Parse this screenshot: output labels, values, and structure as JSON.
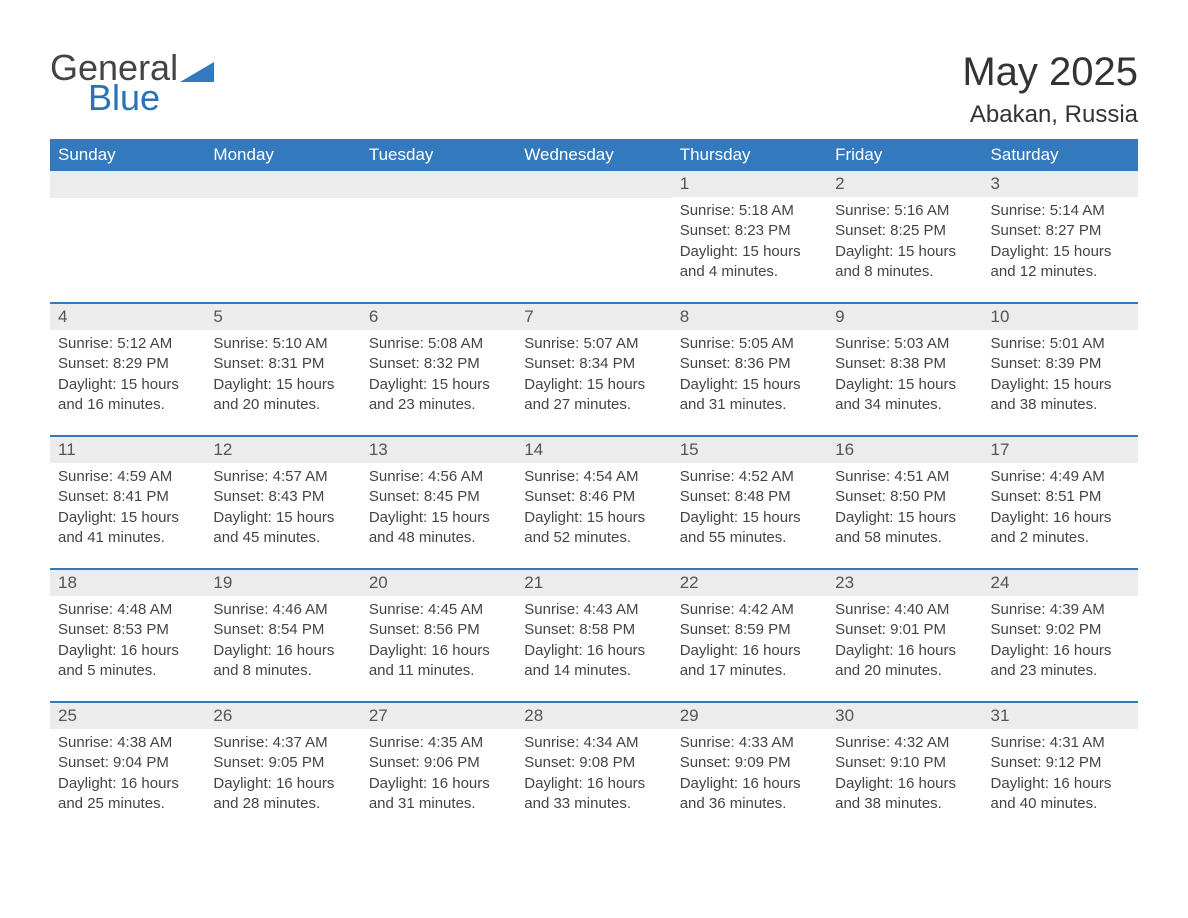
{
  "logo": {
    "general": "General",
    "blue": "Blue"
  },
  "title": "May 2025",
  "location": "Abakan, Russia",
  "colors": {
    "header_bg": "#3279bd",
    "header_text": "#ffffff",
    "daynum_bg": "#ececec",
    "daynum_border": "#3279bd",
    "text": "#444444",
    "logo_blue": "#2873b8",
    "logo_gray": "#444444",
    "page_bg": "#ffffff"
  },
  "weekdays": [
    "Sunday",
    "Monday",
    "Tuesday",
    "Wednesday",
    "Thursday",
    "Friday",
    "Saturday"
  ],
  "weeks": [
    [
      null,
      null,
      null,
      null,
      {
        "d": "1",
        "sr": "5:18 AM",
        "ss": "8:23 PM",
        "dl": "15 hours and 4 minutes."
      },
      {
        "d": "2",
        "sr": "5:16 AM",
        "ss": "8:25 PM",
        "dl": "15 hours and 8 minutes."
      },
      {
        "d": "3",
        "sr": "5:14 AM",
        "ss": "8:27 PM",
        "dl": "15 hours and 12 minutes."
      }
    ],
    [
      {
        "d": "4",
        "sr": "5:12 AM",
        "ss": "8:29 PM",
        "dl": "15 hours and 16 minutes."
      },
      {
        "d": "5",
        "sr": "5:10 AM",
        "ss": "8:31 PM",
        "dl": "15 hours and 20 minutes."
      },
      {
        "d": "6",
        "sr": "5:08 AM",
        "ss": "8:32 PM",
        "dl": "15 hours and 23 minutes."
      },
      {
        "d": "7",
        "sr": "5:07 AM",
        "ss": "8:34 PM",
        "dl": "15 hours and 27 minutes."
      },
      {
        "d": "8",
        "sr": "5:05 AM",
        "ss": "8:36 PM",
        "dl": "15 hours and 31 minutes."
      },
      {
        "d": "9",
        "sr": "5:03 AM",
        "ss": "8:38 PM",
        "dl": "15 hours and 34 minutes."
      },
      {
        "d": "10",
        "sr": "5:01 AM",
        "ss": "8:39 PM",
        "dl": "15 hours and 38 minutes."
      }
    ],
    [
      {
        "d": "11",
        "sr": "4:59 AM",
        "ss": "8:41 PM",
        "dl": "15 hours and 41 minutes."
      },
      {
        "d": "12",
        "sr": "4:57 AM",
        "ss": "8:43 PM",
        "dl": "15 hours and 45 minutes."
      },
      {
        "d": "13",
        "sr": "4:56 AM",
        "ss": "8:45 PM",
        "dl": "15 hours and 48 minutes."
      },
      {
        "d": "14",
        "sr": "4:54 AM",
        "ss": "8:46 PM",
        "dl": "15 hours and 52 minutes."
      },
      {
        "d": "15",
        "sr": "4:52 AM",
        "ss": "8:48 PM",
        "dl": "15 hours and 55 minutes."
      },
      {
        "d": "16",
        "sr": "4:51 AM",
        "ss": "8:50 PM",
        "dl": "15 hours and 58 minutes."
      },
      {
        "d": "17",
        "sr": "4:49 AM",
        "ss": "8:51 PM",
        "dl": "16 hours and 2 minutes."
      }
    ],
    [
      {
        "d": "18",
        "sr": "4:48 AM",
        "ss": "8:53 PM",
        "dl": "16 hours and 5 minutes."
      },
      {
        "d": "19",
        "sr": "4:46 AM",
        "ss": "8:54 PM",
        "dl": "16 hours and 8 minutes."
      },
      {
        "d": "20",
        "sr": "4:45 AM",
        "ss": "8:56 PM",
        "dl": "16 hours and 11 minutes."
      },
      {
        "d": "21",
        "sr": "4:43 AM",
        "ss": "8:58 PM",
        "dl": "16 hours and 14 minutes."
      },
      {
        "d": "22",
        "sr": "4:42 AM",
        "ss": "8:59 PM",
        "dl": "16 hours and 17 minutes."
      },
      {
        "d": "23",
        "sr": "4:40 AM",
        "ss": "9:01 PM",
        "dl": "16 hours and 20 minutes."
      },
      {
        "d": "24",
        "sr": "4:39 AM",
        "ss": "9:02 PM",
        "dl": "16 hours and 23 minutes."
      }
    ],
    [
      {
        "d": "25",
        "sr": "4:38 AM",
        "ss": "9:04 PM",
        "dl": "16 hours and 25 minutes."
      },
      {
        "d": "26",
        "sr": "4:37 AM",
        "ss": "9:05 PM",
        "dl": "16 hours and 28 minutes."
      },
      {
        "d": "27",
        "sr": "4:35 AM",
        "ss": "9:06 PM",
        "dl": "16 hours and 31 minutes."
      },
      {
        "d": "28",
        "sr": "4:34 AM",
        "ss": "9:08 PM",
        "dl": "16 hours and 33 minutes."
      },
      {
        "d": "29",
        "sr": "4:33 AM",
        "ss": "9:09 PM",
        "dl": "16 hours and 36 minutes."
      },
      {
        "d": "30",
        "sr": "4:32 AM",
        "ss": "9:10 PM",
        "dl": "16 hours and 38 minutes."
      },
      {
        "d": "31",
        "sr": "4:31 AM",
        "ss": "9:12 PM",
        "dl": "16 hours and 40 minutes."
      }
    ]
  ],
  "labels": {
    "sunrise": "Sunrise:",
    "sunset": "Sunset:",
    "daylight": "Daylight:"
  }
}
